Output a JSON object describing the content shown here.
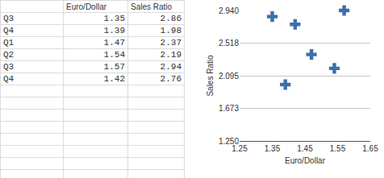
{
  "table": {
    "columns": [
      "Euro/Dollar",
      "Sales Ratio"
    ],
    "rows": [
      {
        "label": "Q3",
        "values": [
          "1.35",
          "2.86"
        ]
      },
      {
        "label": "Q4",
        "values": [
          "1.39",
          "1.98"
        ]
      },
      {
        "label": "Q1",
        "values": [
          "1.47",
          "2.37"
        ]
      },
      {
        "label": "Q2",
        "values": [
          "1.54",
          "2.19"
        ]
      },
      {
        "label": "Q3",
        "values": [
          "1.57",
          "2.94"
        ]
      },
      {
        "label": "Q4",
        "values": [
          "1.42",
          "2.76"
        ]
      }
    ]
  },
  "chart_data": {
    "type": "scatter",
    "x_label": "Euro/Dollar",
    "y_label": "Sales Ratio",
    "x": [
      1.35,
      1.39,
      1.47,
      1.54,
      1.57,
      1.42
    ],
    "values": [
      2.86,
      1.98,
      2.37,
      2.19,
      2.94,
      2.76
    ],
    "color": "#3d6fa6",
    "marker": "cross",
    "xlim": [
      1.25,
      1.65
    ],
    "xticks": [
      1.25,
      1.35,
      1.45,
      1.55,
      1.65
    ],
    "ylim": [
      1.25,
      2.94
    ],
    "yticks": [
      {
        "value": 1.25,
        "label": "1.250"
      },
      1.673,
      2.095,
      2.518,
      {
        "value": 2.94,
        "label": "2.940"
      }
    ],
    "grid": true
  }
}
